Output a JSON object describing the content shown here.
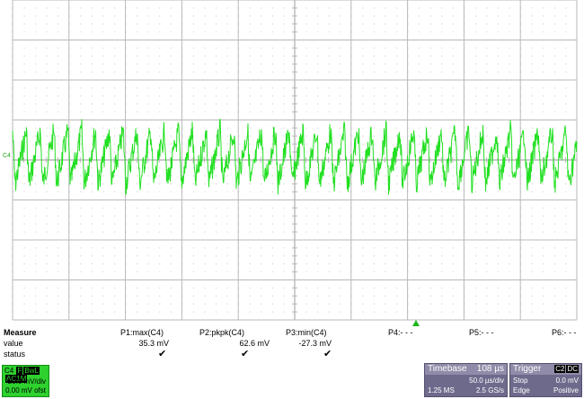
{
  "colors": {
    "trace": "#22e022",
    "grid": "#b8b8b8",
    "grid_dots": "#a8a8a8",
    "channel_panel": "#2ed12e",
    "info_panel": "#6e6a8c"
  },
  "scope": {
    "channel_marker": "C4"
  },
  "measure": {
    "heading": "Measure",
    "row_value_label": "value",
    "row_status_label": "status",
    "params": [
      {
        "name": "P1:max(C4)",
        "value": "35.3 mV",
        "status": "✔"
      },
      {
        "name": "P2:pkpk(C4)",
        "value": "62.6 mV",
        "status": "✔"
      },
      {
        "name": "P3:min(C4)",
        "value": "-27.3 mV",
        "status": "✔"
      },
      {
        "name": "P4:- - -",
        "value": "",
        "status": ""
      },
      {
        "name": "P5:- - -",
        "value": "",
        "status": ""
      },
      {
        "name": "P6:- - -",
        "value": "",
        "status": ""
      }
    ]
  },
  "channel": {
    "name": "C4",
    "tags": [
      "F",
      "BwL",
      "AC1M"
    ],
    "vdiv": "20.0 mV/div",
    "offset": "0.00 mV ofst"
  },
  "timebase": {
    "label": "Timebase",
    "delay": "108 µs",
    "tdiv": "50.0 µs/div",
    "samples": "1.25 MS",
    "rate": "2.5 GS/s"
  },
  "trigger": {
    "label": "Trigger",
    "source": "C2",
    "coupling": "DC",
    "mode": "Stop",
    "level": "0.0 mV",
    "type": "Edge",
    "slope": "Positive"
  }
}
